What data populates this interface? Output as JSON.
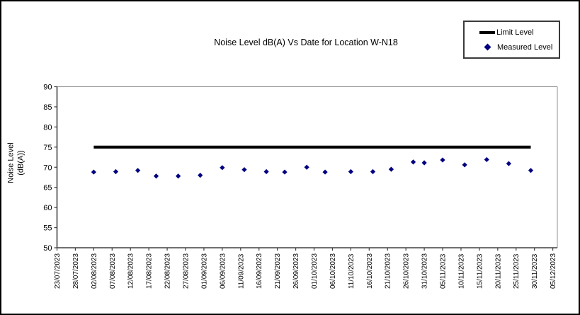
{
  "chart": {
    "title": "Noise Level dB(A) Vs Date for Location W-N18",
    "y_axis_title": [
      "Noise Level",
      "(dB(A))"
    ],
    "legend": {
      "limit_label": "Limit Level",
      "measured_label": "Measured Level"
    }
  },
  "chart_data": {
    "type": "scatter",
    "title": "Noise Level dB(A) Vs Date for Location W-N18",
    "xlabel": "",
    "ylabel": "Noise Level (dB(A))",
    "ylim": [
      50,
      90
    ],
    "ytick_step": 5,
    "grid": false,
    "legend_position": "top-right",
    "colors": {
      "limit_line": "#000000",
      "measured_marker": "#000080",
      "axis": "#404040",
      "plot_border": "#909090"
    },
    "x_axis": {
      "start_date": "23/07/2023",
      "end_date": "05/12/2023",
      "tick_interval_days": 5,
      "total_days": 135,
      "tick_labels": [
        "23/07/2023",
        "28/07/2023",
        "02/08/2023",
        "07/08/2023",
        "12/08/2023",
        "17/08/2023",
        "22/08/2023",
        "27/08/2023",
        "01/09/2023",
        "06/09/2023",
        "11/09/2023",
        "16/09/2023",
        "21/09/2023",
        "26/09/2023",
        "01/10/2023",
        "06/10/2023",
        "11/10/2023",
        "16/10/2023",
        "21/10/2023",
        "26/10/2023",
        "31/10/2023",
        "05/11/2023",
        "10/11/2023",
        "15/11/2023",
        "20/11/2023",
        "25/11/2023",
        "30/11/2023",
        "05/12/2023"
      ]
    },
    "series": [
      {
        "name": "Limit Level",
        "type": "line",
        "color": "#000000",
        "constant_value": 75,
        "start_day_offset": 10,
        "end_day_offset": 129
      },
      {
        "name": "Measured Level",
        "type": "scatter",
        "marker": "diamond",
        "color": "#000080",
        "points": [
          {
            "date": "02/08/2023",
            "day_offset": 10,
            "value": 68.8
          },
          {
            "date": "08/08/2023",
            "day_offset": 16,
            "value": 68.9
          },
          {
            "date": "14/08/2023",
            "day_offset": 22,
            "value": 69.2
          },
          {
            "date": "19/08/2023",
            "day_offset": 27,
            "value": 67.8
          },
          {
            "date": "25/08/2023",
            "day_offset": 33,
            "value": 67.8
          },
          {
            "date": "31/08/2023",
            "day_offset": 39,
            "value": 68.0
          },
          {
            "date": "06/09/2023",
            "day_offset": 45,
            "value": 69.9
          },
          {
            "date": "12/09/2023",
            "day_offset": 51,
            "value": 69.4
          },
          {
            "date": "18/09/2023",
            "day_offset": 57,
            "value": 68.9
          },
          {
            "date": "23/09/2023",
            "day_offset": 62,
            "value": 68.8
          },
          {
            "date": "29/09/2023",
            "day_offset": 68,
            "value": 70.0
          },
          {
            "date": "04/10/2023",
            "day_offset": 73,
            "value": 68.8
          },
          {
            "date": "11/10/2023",
            "day_offset": 80,
            "value": 68.9
          },
          {
            "date": "17/10/2023",
            "day_offset": 86,
            "value": 68.9
          },
          {
            "date": "22/10/2023",
            "day_offset": 91,
            "value": 69.5
          },
          {
            "date": "28/10/2023",
            "day_offset": 97,
            "value": 71.3
          },
          {
            "date": "31/10/2023",
            "day_offset": 100,
            "value": 71.1
          },
          {
            "date": "05/11/2023",
            "day_offset": 105,
            "value": 71.8
          },
          {
            "date": "11/11/2023",
            "day_offset": 111,
            "value": 70.6
          },
          {
            "date": "17/11/2023",
            "day_offset": 117,
            "value": 71.9
          },
          {
            "date": "23/11/2023",
            "day_offset": 123,
            "value": 70.9
          },
          {
            "date": "29/11/2023",
            "day_offset": 129,
            "value": 69.2
          }
        ]
      }
    ]
  }
}
